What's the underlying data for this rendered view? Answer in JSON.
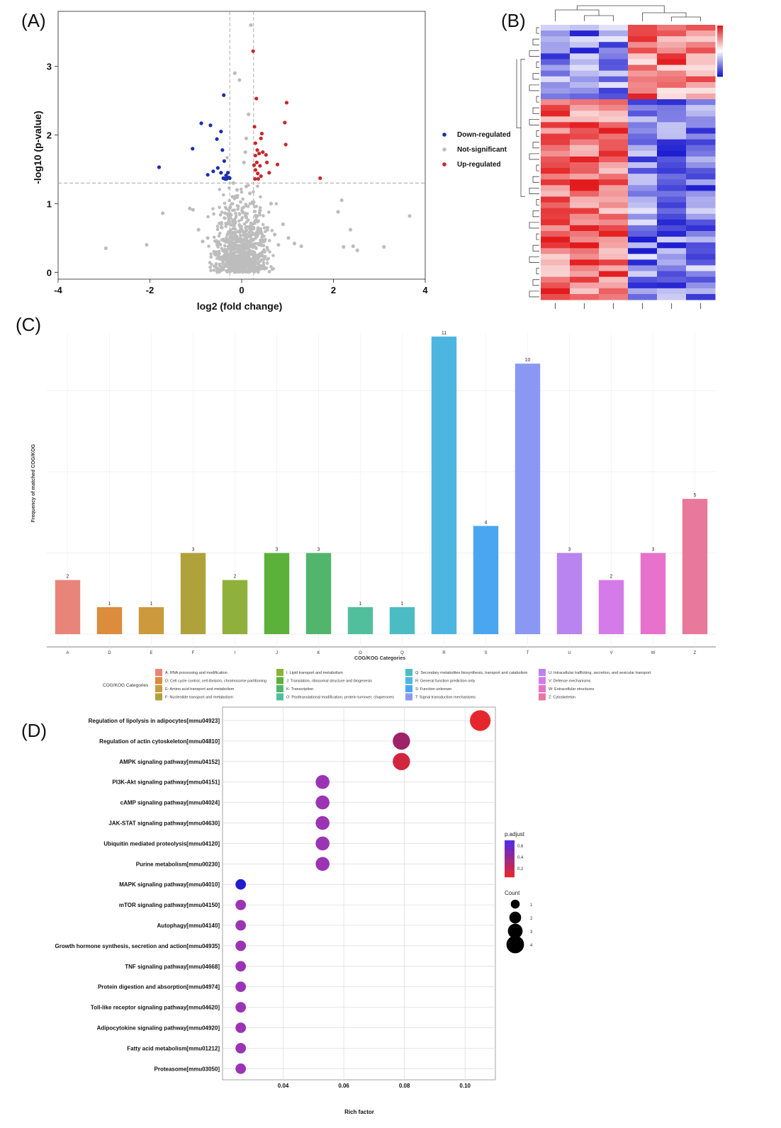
{
  "panels": {
    "a_label": "(A)",
    "b_label": "(B)",
    "c_label": "(C)",
    "d_label": "(D)"
  },
  "chart_data": [
    {
      "type": "scatter",
      "panel": "A",
      "xlabel": "log2 (fold change)",
      "ylabel": "-log10 (p-value)",
      "xlim": [
        -4,
        4
      ],
      "ylim": [
        -0.1,
        3.8
      ],
      "xticks": [
        "-4",
        "-2",
        "0",
        "2",
        "4"
      ],
      "yticks": [
        "0",
        "1",
        "2",
        "3"
      ],
      "threshold_y": 1.3,
      "threshold_x": [
        -0.26,
        0.26
      ],
      "legend": [
        "Down-regulated",
        "Not-significant",
        "Up-regulated"
      ],
      "colors": {
        "down": "#1a2fb0",
        "ns": "#bdbdbd",
        "up": "#c8262b"
      },
      "series": [
        {
          "name": "Down-regulated",
          "points": [
            [
              -1.8,
              1.53
            ],
            [
              -1.07,
              1.8
            ],
            [
              -0.88,
              2.17
            ],
            [
              -0.68,
              2.14
            ],
            [
              -0.54,
              1.94
            ],
            [
              -0.45,
              2.05
            ],
            [
              -0.39,
              2.58
            ],
            [
              -0.42,
              1.78
            ],
            [
              -0.62,
              1.47
            ],
            [
              -0.74,
              1.42
            ],
            [
              -0.52,
              1.52
            ],
            [
              -0.45,
              1.45
            ],
            [
              -0.38,
              1.62
            ],
            [
              -0.34,
              1.41
            ],
            [
              -0.3,
              1.45
            ],
            [
              -0.28,
              1.38
            ],
            [
              -0.33,
              1.36
            ],
            [
              -0.36,
              1.36
            ],
            [
              -0.26,
              1.37
            ],
            [
              -0.4,
              1.37
            ]
          ]
        },
        {
          "name": "Up-regulated",
          "points": [
            [
              0.25,
              3.22
            ],
            [
              0.32,
              2.53
            ],
            [
              0.98,
              2.47
            ],
            [
              0.94,
              2.18
            ],
            [
              0.44,
              2.02
            ],
            [
              0.42,
              1.95
            ],
            [
              0.96,
              1.86
            ],
            [
              0.28,
              2.12
            ],
            [
              0.3,
              1.88
            ],
            [
              0.34,
              1.78
            ],
            [
              0.3,
              1.7
            ],
            [
              0.38,
              1.73
            ],
            [
              0.46,
              1.75
            ],
            [
              0.53,
              1.71
            ],
            [
              0.55,
              1.6
            ],
            [
              0.33,
              1.6
            ],
            [
              0.27,
              1.56
            ],
            [
              0.3,
              1.49
            ],
            [
              0.35,
              1.44
            ],
            [
              0.6,
              1.45
            ],
            [
              0.78,
              1.57
            ],
            [
              0.42,
              1.4
            ],
            [
              1.71,
              1.37
            ],
            [
              0.29,
              1.36
            ],
            [
              0.36,
              1.36
            ],
            [
              0.4,
              1.55
            ]
          ]
        },
        {
          "name": "Not-significant",
          "points": [
            [
              -2.96,
              0.35
            ],
            [
              -2.07,
              0.4
            ],
            [
              -1.72,
              0.86
            ],
            [
              -1.13,
              0.93
            ],
            [
              -1.06,
              0.91
            ],
            [
              -0.94,
              0.62
            ],
            [
              -0.85,
              0.45
            ],
            [
              -0.74,
              0.5
            ],
            [
              -0.6,
              0.3
            ],
            [
              -0.5,
              0.44
            ],
            [
              -0.44,
              0.7
            ],
            [
              -0.36,
              0.86
            ],
            [
              -0.31,
              0.55
            ],
            [
              -0.22,
              0.35
            ],
            [
              -0.15,
              0.2
            ],
            [
              -0.1,
              0.45
            ],
            [
              -0.05,
              0.6
            ],
            [
              0.0,
              0.1
            ],
            [
              0.05,
              0.25
            ],
            [
              0.1,
              0.8
            ],
            [
              0.15,
              0.4
            ],
            [
              0.2,
              0.6
            ],
            [
              0.25,
              1.0
            ],
            [
              0.3,
              0.75
            ],
            [
              0.35,
              0.55
            ],
            [
              0.4,
              0.9
            ],
            [
              0.45,
              0.45
            ],
            [
              0.5,
              0.3
            ],
            [
              0.56,
              0.65
            ],
            [
              0.64,
              1.0
            ],
            [
              0.72,
              0.55
            ],
            [
              0.8,
              0.4
            ],
            [
              0.9,
              0.7
            ],
            [
              1.02,
              0.5
            ],
            [
              1.15,
              0.42
            ],
            [
              1.3,
              0.38
            ],
            [
              -0.2,
              1.1
            ],
            [
              -0.1,
              1.2
            ],
            [
              0.1,
              1.25
            ],
            [
              0.18,
              1.15
            ],
            [
              -0.25,
              0.95
            ],
            [
              0.05,
              1.6
            ],
            [
              0.1,
              1.95
            ],
            [
              0.15,
              2.3
            ],
            [
              -0.05,
              2.8
            ],
            [
              -0.15,
              2.9
            ],
            [
              0.2,
              3.6
            ],
            [
              0.08,
              1.75
            ],
            [
              -0.18,
              1.3
            ],
            [
              2.18,
              1.05
            ],
            [
              2.22,
              0.37
            ],
            [
              2.37,
              0.62
            ],
            [
              2.43,
              0.38
            ],
            [
              2.52,
              0.32
            ],
            [
              3.1,
              0.37
            ],
            [
              3.66,
              0.82
            ],
            [
              2.1,
              0.88
            ],
            [
              -0.04,
              0.02
            ],
            [
              0.02,
              0.05
            ]
          ]
        }
      ]
    },
    {
      "type": "heatmap",
      "panel": "B",
      "rows": 48,
      "cols": 6,
      "colorbar": [
        "#1a1ad0",
        "#ffffff",
        "#e31a1c"
      ]
    },
    {
      "type": "bar",
      "panel": "C",
      "xlabel": "COG/KOG Categories",
      "ylabel": "Frequency of matched COG/KOG",
      "ylim": [
        0,
        11
      ],
      "categories": [
        "A",
        "D",
        "E",
        "F",
        "I",
        "J",
        "K",
        "O",
        "Q",
        "R",
        "S",
        "T",
        "U",
        "V",
        "W",
        "Z"
      ],
      "values": [
        2,
        1,
        1,
        3,
        2,
        3,
        3,
        1,
        1,
        11,
        4,
        10,
        3,
        2,
        3,
        5
      ],
      "colors": [
        "#e8847a",
        "#db8c3c",
        "#cc9a3c",
        "#b0a23a",
        "#8fb03a",
        "#5cb13a",
        "#52b56c",
        "#52bf9c",
        "#4cbcc4",
        "#4cb6e1",
        "#4aa6f1",
        "#8a98f3",
        "#b884ef",
        "#d57ae9",
        "#e672cc",
        "#e9789d"
      ],
      "legend_title": "COG/KOG Categories",
      "legend": [
        "A: RNA processing and modification",
        "D: Cell cycle control, cell division, chromosome partitioning",
        "E: Amino acid transport and metabolism",
        "F: Nucleotide transport and metabolism",
        "I: Lipid transport and metabolism",
        "J: Translation, ribosomal structure and biogenesis",
        "K: Transcription",
        "O: Posttranslational modification, protein turnover, chaperones",
        "Q: Secondary metabolites biosynthesis, transport and catabolism",
        "R: General function prediction only",
        "S: Function unknown",
        "T: Signal transduction mechanisms",
        "U: Intracellular trafficking, secretion, and vesicular transport",
        "V: Defense mechanisms",
        "W: Extracellular structures",
        "Z: Cytoskeleton"
      ]
    },
    {
      "type": "scatter",
      "panel": "D",
      "xlabel": "Rich factor",
      "xlim": [
        0.02,
        0.11
      ],
      "xticks": [
        "0.04",
        "0.06",
        "0.08",
        "0.10"
      ],
      "legend_padjust_title": "p.adjust",
      "legend_padjust_ticks": [
        "0.6",
        "0.4",
        "0.2"
      ],
      "legend_count_title": "Count",
      "legend_count_ticks": [
        "1",
        "2",
        "3",
        "4"
      ],
      "pathways": [
        {
          "name": "Regulation of lipolysis in adipocytes[mmu04923]",
          "rich": 0.105,
          "count": 4,
          "padj": 0.05
        },
        {
          "name": "Regulation of actin cytoskeleton[mmu04810]",
          "rich": 0.079,
          "count": 3,
          "padj": 0.3
        },
        {
          "name": "AMPK signaling pathway[mmu04152]",
          "rich": 0.079,
          "count": 3,
          "padj": 0.12
        },
        {
          "name": "PI3K-Akt signaling pathway[mmu04151]",
          "rich": 0.053,
          "count": 2,
          "padj": 0.35
        },
        {
          "name": "cAMP signaling pathway[mmu04024]",
          "rich": 0.053,
          "count": 2,
          "padj": 0.35
        },
        {
          "name": "JAK-STAT signaling pathway[mmu04630]",
          "rich": 0.053,
          "count": 2,
          "padj": 0.35
        },
        {
          "name": "Ubiquitin mediated proteolysis[mmu04120]",
          "rich": 0.053,
          "count": 2,
          "padj": 0.35
        },
        {
          "name": "Purine metabolism[mmu00230]",
          "rich": 0.053,
          "count": 2,
          "padj": 0.35
        },
        {
          "name": "MAPK signaling pathway[mmu04010]",
          "rich": 0.026,
          "count": 1,
          "padj": 0.72
        },
        {
          "name": "mTOR signaling pathway[mmu04150]",
          "rich": 0.026,
          "count": 1,
          "padj": 0.4
        },
        {
          "name": "Autophagy[mmu04140]",
          "rich": 0.026,
          "count": 1,
          "padj": 0.4
        },
        {
          "name": "Growth hormone synthesis, secretion and action[mmu04935]",
          "rich": 0.026,
          "count": 1,
          "padj": 0.4
        },
        {
          "name": "TNF signaling pathway[mmu04668]",
          "rich": 0.026,
          "count": 1,
          "padj": 0.4
        },
        {
          "name": "Protein digestion and absorption[mmu04974]",
          "rich": 0.026,
          "count": 1,
          "padj": 0.4
        },
        {
          "name": "Toll-like receptor signaling pathway[mmu04620]",
          "rich": 0.026,
          "count": 1,
          "padj": 0.4
        },
        {
          "name": "Adipocytokine signaling pathway[mmu04920]",
          "rich": 0.026,
          "count": 1,
          "padj": 0.4
        },
        {
          "name": "Fatty acid metabolism[mmu01212]",
          "rich": 0.026,
          "count": 1,
          "padj": 0.4
        },
        {
          "name": "Proteasome[mmu03050]",
          "rich": 0.026,
          "count": 1,
          "padj": 0.4
        }
      ]
    }
  ]
}
